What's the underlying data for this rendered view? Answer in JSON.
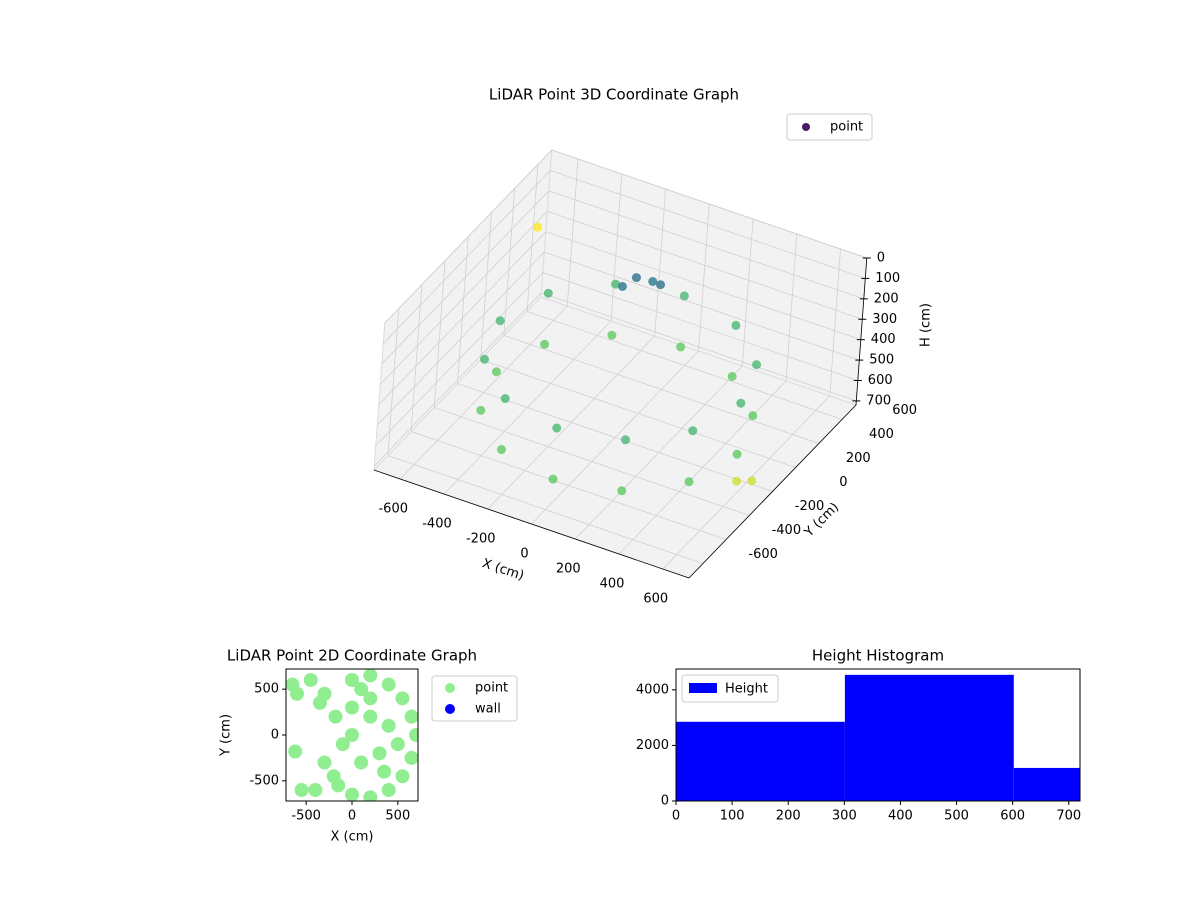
{
  "chart_data": [
    {
      "type": "scatter3d",
      "title": "LiDAR Point 3D Coordinate Graph",
      "xlabel": "X (cm)",
      "ylabel": "Y (cm)",
      "zlabel": "H (cm)",
      "xlim": [
        -720,
        720
      ],
      "ylim": [
        -720,
        720
      ],
      "zlim": [
        720,
        0
      ],
      "xticks": [
        -600,
        -400,
        -200,
        0,
        200,
        400,
        600
      ],
      "yticks": [
        -600,
        -400,
        -200,
        0,
        200,
        400,
        600
      ],
      "zticks": [
        0,
        100,
        200,
        300,
        400,
        500,
        600,
        700
      ],
      "colormap": "viridis",
      "grid": true,
      "legend": "upper right",
      "series": [
        {
          "name": "point",
          "color": "#481a6c",
          "x": [
            550,
            476,
            275,
            0,
            -275,
            -476,
            -550,
            -476,
            -275,
            0,
            275,
            476,
            550,
            476,
            275,
            0,
            -275,
            -476,
            -550,
            -476,
            -275,
            0,
            275,
            476,
            -100,
            -50,
            0,
            -150,
            700,
            720,
            -700
          ],
          "y": [
            0,
            275,
            476,
            550,
            476,
            275,
            0,
            -275,
            -476,
            -550,
            -476,
            -275,
            0,
            275,
            476,
            550,
            476,
            275,
            0,
            -275,
            -476,
            -550,
            -476,
            -275,
            300,
            350,
            320,
            280,
            -300,
            -200,
            600
          ],
          "z": [
            350,
            350,
            350,
            350,
            350,
            350,
            350,
            350,
            350,
            350,
            350,
            350,
            600,
            600,
            600,
            600,
            600,
            600,
            600,
            600,
            600,
            600,
            600,
            600,
            150,
            180,
            160,
            200,
            500,
            550,
            300
          ]
        }
      ]
    },
    {
      "type": "scatter",
      "title": "LiDAR Point 2D Coordinate Graph",
      "xlabel": "X (cm)",
      "ylabel": "Y (cm)",
      "xlim": [
        -720,
        720
      ],
      "ylim": [
        -720,
        720
      ],
      "xticks": [
        -500,
        0,
        500
      ],
      "yticks": [
        -500,
        0,
        500
      ],
      "legend": "outside right",
      "series": [
        {
          "name": "point",
          "color": "#90ee90",
          "x": [
            -650,
            -600,
            -450,
            -350,
            -300,
            -180,
            -620,
            -300,
            -200,
            -550,
            -400,
            0,
            200,
            400,
            550,
            650,
            700,
            650,
            550,
            400,
            200,
            0,
            -150,
            0,
            200,
            300,
            100,
            400,
            200,
            0,
            -100,
            500,
            350,
            100
          ],
          "y": [
            550,
            450,
            600,
            350,
            450,
            200,
            -180,
            -300,
            -450,
            -600,
            -600,
            600,
            650,
            550,
            400,
            200,
            0,
            -250,
            -450,
            -600,
            -680,
            -650,
            -550,
            0,
            200,
            -200,
            -300,
            100,
            400,
            300,
            -100,
            -100,
            -400,
            500
          ]
        },
        {
          "name": "wall",
          "color": "#0000ff",
          "x": [],
          "y": []
        }
      ]
    },
    {
      "type": "histogram",
      "title": "Height Histogram",
      "label": "Height",
      "color": "#0000ff",
      "bins": [
        0,
        301,
        602,
        720
      ],
      "values": [
        2850,
        4540,
        1190
      ],
      "xlim": [
        0,
        720
      ],
      "ylim": [
        0,
        4750
      ],
      "xticks": [
        0,
        100,
        200,
        300,
        400,
        500,
        600,
        700
      ],
      "yticks": [
        0,
        2000,
        4000
      ],
      "legend": "upper left"
    }
  ]
}
